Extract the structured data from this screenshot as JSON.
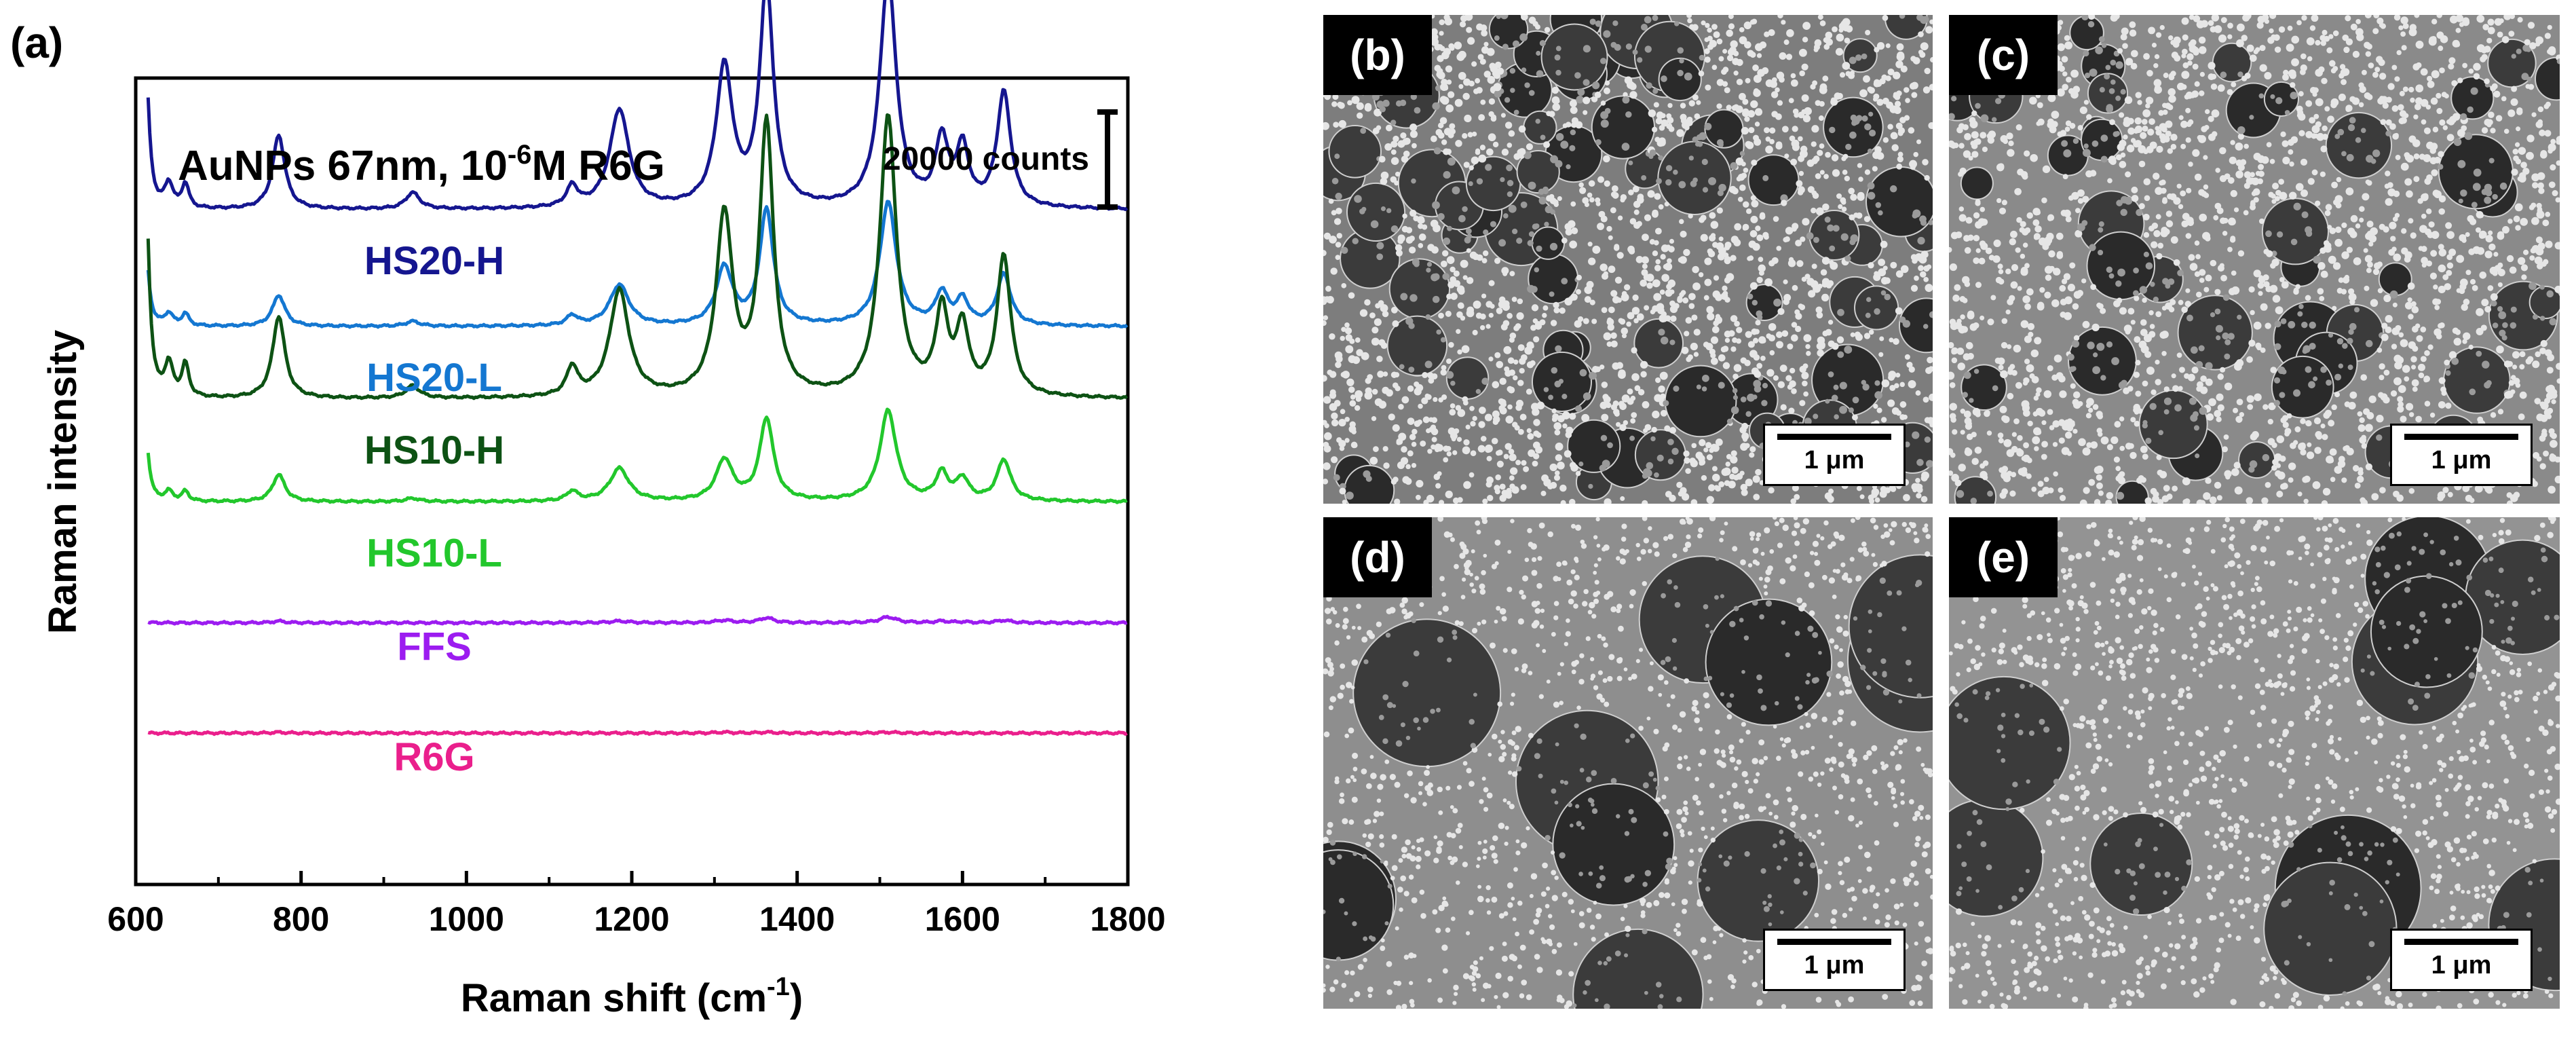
{
  "panel_a_label": "(a)",
  "chart_data": {
    "type": "line",
    "title": "AuNPs 67nm, 10⁻⁶M R6G",
    "title_parts": {
      "main": "AuNPs 67nm, 10",
      "exponent": "-6",
      "suffix": "M R6G"
    },
    "xlabel": "Raman shift (cm⁻¹)",
    "xlabel_parts": {
      "main": "Raman shift (cm",
      "exponent": "-1",
      "suffix": ")"
    },
    "ylabel": "Raman intensity",
    "xlim": [
      600,
      1800
    ],
    "xticks": [
      "600",
      "800",
      "1000",
      "1200",
      "1400",
      "1600",
      "1800"
    ],
    "scale_bar_label": "20000 counts",
    "scale_bar_counts": 20000,
    "grid": false,
    "y_units": "arbitrary (offset traces)",
    "peaks_cm1": [
      612,
      640,
      660,
      773,
      935,
      1128,
      1185,
      1312,
      1363,
      1510,
      1575,
      1600,
      1650
    ],
    "peak_widths_cm1": [
      5,
      6,
      5,
      9,
      10,
      8,
      14,
      12,
      10,
      12,
      9,
      9,
      10
    ],
    "series": [
      {
        "name": "HS20-H",
        "color": "#15168f",
        "baseline": 32000,
        "amplitudes": [
          18000,
          3000,
          3000,
          9000,
          2000,
          2500,
          12000,
          17000,
          27000,
          28000,
          8000,
          7000,
          14000
        ]
      },
      {
        "name": "HS20-L",
        "color": "#1477d1",
        "baseline": 17800,
        "amplitudes": [
          9000,
          1500,
          1500,
          3800,
          600,
          1200,
          5000,
          7000,
          14000,
          15000,
          3800,
          3000,
          6200
        ]
      },
      {
        "name": "HS10-H",
        "color": "#0d5214",
        "baseline": 9000,
        "amplitudes": [
          26000,
          4000,
          4000,
          10000,
          1500,
          3500,
          13000,
          22000,
          33000,
          34000,
          10000,
          8000,
          17000
        ]
      },
      {
        "name": "HS10-L",
        "color": "#22c72c",
        "baseline": -3500,
        "amplitudes": [
          8000,
          1200,
          1200,
          3300,
          400,
          1200,
          4000,
          5000,
          10000,
          11000,
          3300,
          2600,
          5000
        ]
      },
      {
        "name": "FFS",
        "color": "#9c1cf0",
        "baseline": -18200,
        "amplitudes": [
          100,
          0,
          0,
          200,
          0,
          0,
          200,
          300,
          600,
          700,
          200,
          100,
          300
        ]
      },
      {
        "name": "R6G",
        "color": "#ea1f8c",
        "baseline": -31600,
        "amplitudes": [
          0,
          0,
          0,
          100,
          0,
          0,
          0,
          100,
          100,
          100,
          0,
          0,
          0
        ]
      }
    ],
    "y_range_counts": [
      -50000,
      48000
    ]
  },
  "sem_panels": [
    {
      "label": "(b)",
      "scale_label": "1 μm"
    },
    {
      "label": "(c)",
      "scale_label": "1 μm"
    },
    {
      "label": "(d)",
      "scale_label": "1 μm"
    },
    {
      "label": "(e)",
      "scale_label": "1 μm"
    }
  ]
}
